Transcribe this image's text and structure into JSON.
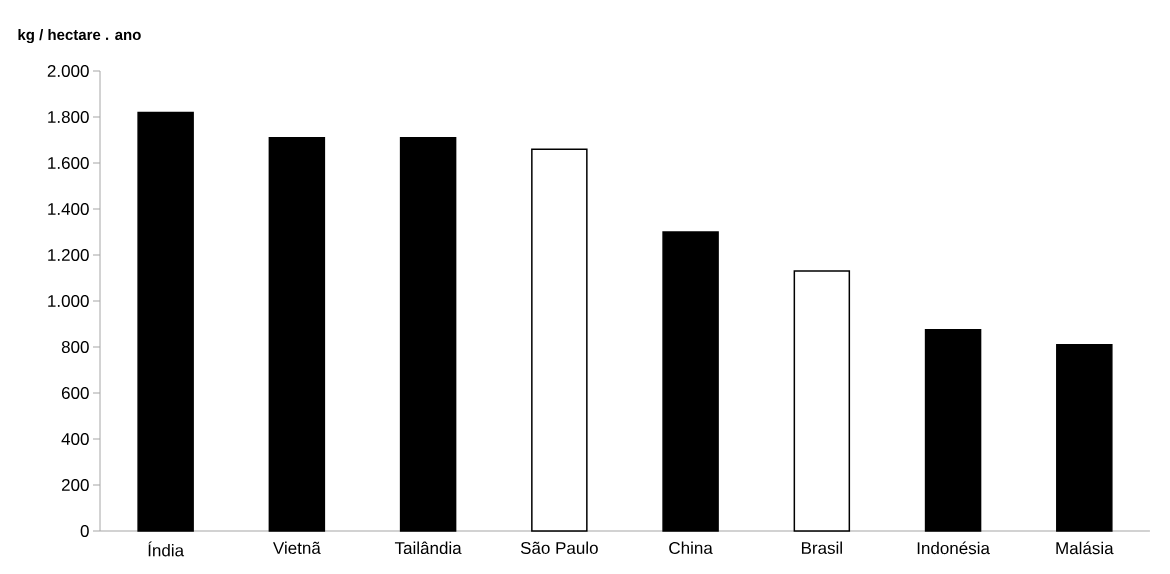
{
  "chart_data": {
    "type": "bar",
    "ylabel": "kg / hectare . ano",
    "categories": [
      "Índia",
      "Vietnã",
      "Tailândia",
      "São Paulo",
      "China",
      "Brasil",
      "Indonésia",
      "Malásia"
    ],
    "values": [
      1820,
      1710,
      1710,
      1660,
      1300,
      1130,
      875,
      810
    ],
    "colors": [
      "#000000",
      "#000000",
      "#000000",
      "#ffffff",
      "#000000",
      "#ffffff",
      "#000000",
      "#000000"
    ],
    "ylim": [
      0,
      2000
    ],
    "yticks": [
      0,
      200,
      400,
      600,
      800,
      {
        "value": 1000,
        "label": "1.000"
      },
      {
        "value": 1200,
        "label": "1.200"
      },
      {
        "value": 1400,
        "label": "1.400"
      },
      {
        "value": 1600,
        "label": "1.600"
      },
      {
        "value": 1800,
        "label": "1.800"
      },
      {
        "value": 2000,
        "label": "2.000"
      }
    ]
  }
}
